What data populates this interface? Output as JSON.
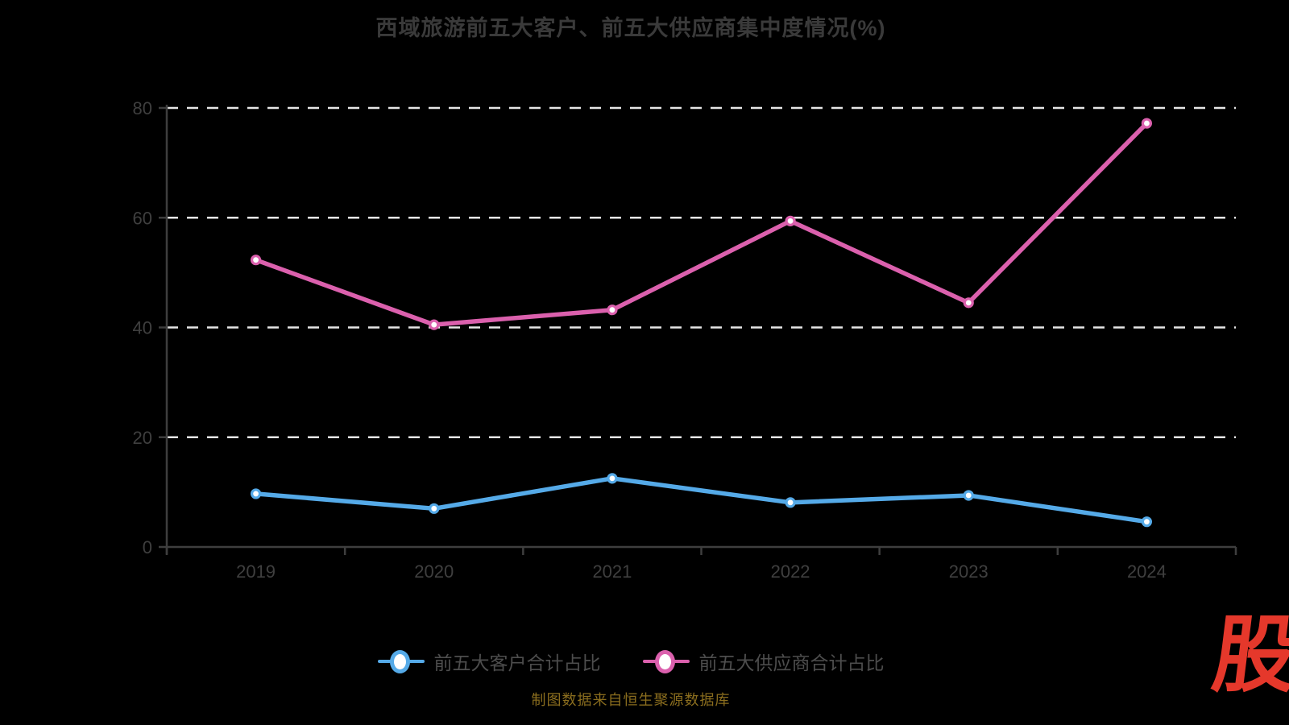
{
  "page": {
    "background": "#000000",
    "caption": "制图数据来自恒生聚源数据库",
    "caption_color": "#8a6d1e",
    "logo_text": "股",
    "logo_color": "#e5382b"
  },
  "chart_data": {
    "type": "line",
    "title": "西域旅游前五大客户、前五大供应商集中度情况(%)",
    "categories": [
      "2019",
      "2020",
      "2021",
      "2022",
      "2023",
      "2024"
    ],
    "series": [
      {
        "name": "前五大客户合计占比",
        "color": "#55AAE8",
        "values": [
          9.7,
          7.0,
          12.5,
          8.1,
          9.4,
          4.6
        ]
      },
      {
        "name": "前五大供应商合计占比",
        "color": "#DB60AD",
        "values": [
          52.3,
          40.5,
          43.2,
          59.4,
          44.5,
          77.2
        ]
      }
    ],
    "xlabel": "",
    "ylabel": "",
    "ylim": [
      0,
      80
    ],
    "yticks": [
      0,
      20,
      40,
      60,
      80
    ],
    "grid": {
      "horizontal_dashed": true,
      "color": "#e6e6e6"
    },
    "legend_position": "bottom",
    "axis_color": "#3e3e3e",
    "tick_label_color": "#3f3f3f",
    "title_color": "#3a3a3a",
    "legend_text_color": "#4d4d4d",
    "marker_fill": "#ffffff"
  }
}
